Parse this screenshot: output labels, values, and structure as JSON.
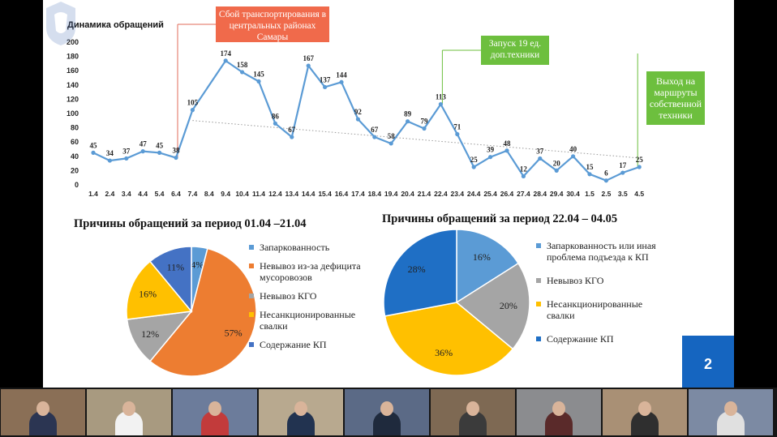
{
  "line_chart": {
    "title": "Динамика обращений",
    "y_ticks": [
      "200",
      "180",
      "160",
      "140",
      "120",
      "100",
      "80",
      "60",
      "40",
      "20",
      "0"
    ],
    "categories": [
      "1.4",
      "2.4",
      "3.4",
      "4.4",
      "5.4",
      "6.4",
      "7.4",
      "8.4",
      "9.4",
      "10.4",
      "11.4",
      "12.4",
      "13.4",
      "14.4",
      "15.4",
      "16.4",
      "17.4",
      "18.4",
      "19.4",
      "20.4",
      "21.4",
      "22.4",
      "23.4",
      "24.4",
      "25.4",
      "26.4",
      "27.4",
      "28.4",
      "29.4",
      "30.4",
      "1.5",
      "2.5",
      "3.5",
      "4.5"
    ],
    "values": [
      45,
      34,
      37,
      47,
      45,
      38,
      105,
      null,
      174,
      158,
      145,
      86,
      67,
      167,
      137,
      144,
      92,
      67,
      58,
      89,
      79,
      113,
      71,
      25,
      39,
      48,
      12,
      37,
      20,
      40,
      15,
      6,
      17,
      25
    ],
    "annotation_red": "Сбой транспортирования в центральных районах Самары",
    "annotation_green1": "Запуск 19 ед. доп.техники",
    "annotation_green2": "Выход на маршруты собственной техники"
  },
  "chart_data": [
    {
      "type": "line",
      "title": "Динамика обращений",
      "ylim": [
        0,
        200
      ],
      "x": [
        "1.4",
        "2.4",
        "3.4",
        "4.4",
        "5.4",
        "6.4",
        "7.4",
        "8.4",
        "9.4",
        "10.4",
        "11.4",
        "12.4",
        "13.4",
        "14.4",
        "15.4",
        "16.4",
        "17.4",
        "18.4",
        "19.4",
        "20.4",
        "21.4",
        "22.4",
        "23.4",
        "24.4",
        "25.4",
        "26.4",
        "27.4",
        "28.4",
        "29.4",
        "30.4",
        "1.5",
        "2.5",
        "3.5",
        "4.5"
      ],
      "y": [
        45,
        34,
        37,
        47,
        45,
        38,
        105,
        null,
        174,
        158,
        145,
        86,
        67,
        167,
        137,
        144,
        92,
        67,
        58,
        89,
        79,
        113,
        71,
        25,
        39,
        48,
        12,
        37,
        20,
        40,
        15,
        6,
        17,
        25
      ],
      "trendline": "dotted-linear"
    },
    {
      "type": "pie",
      "title": "Причины обращений за период 01.04 –21.04",
      "labels": [
        "Запаркованность",
        "Невывоз из-за дефицита мусоровозов",
        "Невывоз КГО",
        "Несанкционированные свалки",
        "Содержание КП"
      ],
      "values": [
        4,
        57,
        12,
        16,
        11
      ],
      "colors": [
        "#5b9bd5",
        "#ed7d31",
        "#a5a5a5",
        "#ffc000",
        "#4472c4"
      ]
    },
    {
      "type": "pie",
      "title": "Причины обращений за период 22.04 – 04.05",
      "labels": [
        "Запаркованность или иная проблема подъезда к КП",
        "Невывоз КГО",
        "Несанкционированные свалки",
        "Содержание КП"
      ],
      "values": [
        16,
        20,
        36,
        28
      ],
      "colors": [
        "#5b9bd5",
        "#a5a5a5",
        "#ffc000",
        "#1f6fc5"
      ]
    }
  ],
  "pie1": {
    "title": "Причины обращений за период 01.04 –21.04",
    "legend": [
      {
        "label": "Запаркованность",
        "color": "#5b9bd5"
      },
      {
        "label": "Невывоз из-за дефицита мусоровозов",
        "color": "#ed7d31"
      },
      {
        "label": "Невывоз КГО",
        "color": "#a5a5a5"
      },
      {
        "label": "Несанкционированные свалки",
        "color": "#ffc000"
      },
      {
        "label": "Содержание КП",
        "color": "#4472c4"
      }
    ]
  },
  "pie2": {
    "title": "Причины обращений за период 22.04 – 04.05",
    "legend": [
      {
        "label": "Запаркованность или иная проблема подъезда к КП",
        "color": "#5b9bd5"
      },
      {
        "label": "Невывоз КГО",
        "color": "#a5a5a5"
      },
      {
        "label": "Несанкционированные свалки",
        "color": "#ffc000"
      },
      {
        "label": "Содержание КП",
        "color": "#1f6fc5"
      }
    ]
  },
  "page_number": "2",
  "colors": {
    "line": "#5b9bd5",
    "accent_blue": "#1565c0",
    "box_red": "#f06a4b",
    "box_green": "#6dbf3e"
  },
  "video_tiles": [
    {
      "name": "participant-1",
      "bg": "#8a6f56",
      "shirt": "#2b3552"
    },
    {
      "name": "participant-2",
      "bg": "#a89a80",
      "shirt": "#f2f2f2"
    },
    {
      "name": "participant-3",
      "bg": "#6c7c9b",
      "shirt": "#c23b3b"
    },
    {
      "name": "participant-4",
      "bg": "#b8a98f",
      "shirt": "#223350"
    },
    {
      "name": "participant-5",
      "bg": "#5b6a86",
      "shirt": "#1f2a3d"
    },
    {
      "name": "participant-6",
      "bg": "#7e6953",
      "shirt": "#3b3b3b"
    },
    {
      "name": "participant-7",
      "bg": "#8b8c8f",
      "shirt": "#5a2a2a"
    },
    {
      "name": "participant-8",
      "bg": "#a99075",
      "shirt": "#2f2f2f"
    },
    {
      "name": "participant-9",
      "bg": "#7c8aa3",
      "shirt": "#e0e0e0"
    }
  ]
}
